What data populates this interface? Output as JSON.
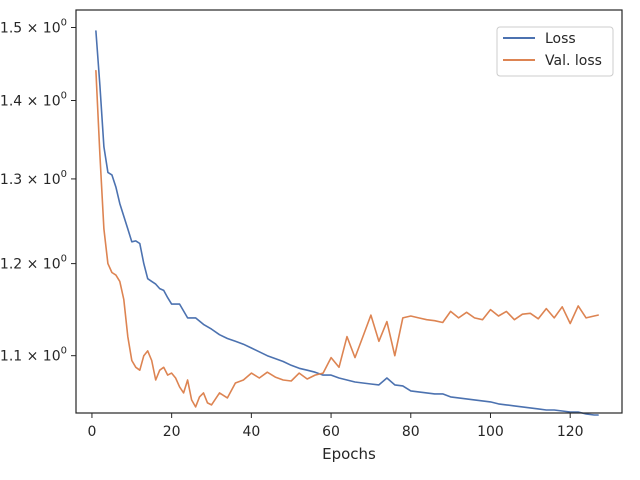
{
  "chart_data": {
    "type": "line",
    "title": "",
    "xlabel": "Epochs",
    "ylabel": "",
    "yscale": "log",
    "xlim": [
      -4,
      133
    ],
    "ylim": [
      1.042,
      1.525
    ],
    "grid": false,
    "legend_position": "top-right",
    "x_ticks": [
      0,
      20,
      40,
      60,
      80,
      100,
      120
    ],
    "x_tick_labels": [
      "0",
      "20",
      "40",
      "60",
      "80",
      "100",
      "120"
    ],
    "y_ticks": [
      1.1,
      1.2,
      1.3,
      1.4,
      1.5
    ],
    "y_tick_labels": [
      {
        "mantissa": "1.1",
        "times": "×",
        "base": "10",
        "exp": "0"
      },
      {
        "mantissa": "1.2",
        "times": "×",
        "base": "10",
        "exp": "0"
      },
      {
        "mantissa": "1.3",
        "times": "×",
        "base": "10",
        "exp": "0"
      },
      {
        "mantissa": "1.4",
        "times": "×",
        "base": "10",
        "exp": "0"
      },
      {
        "mantissa": "1.5",
        "times": "×",
        "base": "10",
        "exp": "0"
      }
    ],
    "series": [
      {
        "name": "Loss",
        "color": "#4c72b0",
        "x": [
          1,
          2,
          3,
          4,
          5,
          6,
          7,
          8,
          9,
          10,
          11,
          12,
          13,
          14,
          15,
          16,
          17,
          18,
          19,
          20,
          22,
          24,
          26,
          28,
          30,
          32,
          34,
          36,
          38,
          40,
          42,
          44,
          46,
          48,
          50,
          52,
          54,
          56,
          58,
          60,
          62,
          64,
          66,
          68,
          70,
          72,
          74,
          76,
          78,
          80,
          82,
          84,
          86,
          88,
          90,
          92,
          94,
          96,
          98,
          100,
          102,
          104,
          106,
          108,
          110,
          112,
          114,
          116,
          118,
          120,
          122,
          124,
          126,
          127
        ],
        "values": [
          1.495,
          1.42,
          1.34,
          1.308,
          1.305,
          1.29,
          1.27,
          1.255,
          1.24,
          1.225,
          1.226,
          1.223,
          1.2,
          1.183,
          1.18,
          1.177,
          1.172,
          1.17,
          1.162,
          1.155,
          1.155,
          1.14,
          1.14,
          1.133,
          1.128,
          1.122,
          1.118,
          1.115,
          1.112,
          1.108,
          1.104,
          1.1,
          1.097,
          1.094,
          1.09,
          1.087,
          1.085,
          1.083,
          1.08,
          1.08,
          1.077,
          1.075,
          1.073,
          1.072,
          1.071,
          1.07,
          1.077,
          1.07,
          1.069,
          1.064,
          1.063,
          1.062,
          1.061,
          1.061,
          1.058,
          1.057,
          1.056,
          1.055,
          1.054,
          1.053,
          1.051,
          1.05,
          1.049,
          1.048,
          1.047,
          1.046,
          1.045,
          1.045,
          1.044,
          1.043,
          1.043,
          1.041,
          1.04,
          1.04
        ]
      },
      {
        "name": "Val. loss",
        "color": "#dd8452",
        "x": [
          1,
          2,
          3,
          4,
          5,
          6,
          7,
          8,
          9,
          10,
          11,
          12,
          13,
          14,
          15,
          16,
          17,
          18,
          19,
          20,
          21,
          22,
          23,
          24,
          25,
          26,
          27,
          28,
          29,
          30,
          32,
          34,
          36,
          38,
          40,
          42,
          44,
          46,
          48,
          50,
          52,
          54,
          56,
          58,
          60,
          62,
          64,
          66,
          68,
          70,
          72,
          74,
          76,
          78,
          80,
          82,
          84,
          86,
          88,
          90,
          92,
          94,
          96,
          98,
          100,
          102,
          104,
          106,
          108,
          110,
          112,
          114,
          116,
          118,
          120,
          122,
          124,
          126,
          127
        ],
        "values": [
          1.44,
          1.33,
          1.24,
          1.2,
          1.19,
          1.187,
          1.18,
          1.16,
          1.12,
          1.095,
          1.088,
          1.085,
          1.1,
          1.105,
          1.095,
          1.075,
          1.085,
          1.088,
          1.08,
          1.082,
          1.077,
          1.068,
          1.062,
          1.075,
          1.055,
          1.048,
          1.058,
          1.062,
          1.052,
          1.05,
          1.062,
          1.057,
          1.072,
          1.075,
          1.082,
          1.077,
          1.083,
          1.078,
          1.075,
          1.074,
          1.082,
          1.076,
          1.08,
          1.082,
          1.098,
          1.088,
          1.12,
          1.098,
          1.12,
          1.143,
          1.115,
          1.136,
          1.1,
          1.14,
          1.142,
          1.14,
          1.138,
          1.137,
          1.135,
          1.147,
          1.14,
          1.146,
          1.14,
          1.138,
          1.149,
          1.142,
          1.147,
          1.138,
          1.144,
          1.145,
          1.139,
          1.15,
          1.14,
          1.152,
          1.134,
          1.153,
          1.14,
          1.142,
          1.143
        ]
      }
    ]
  }
}
